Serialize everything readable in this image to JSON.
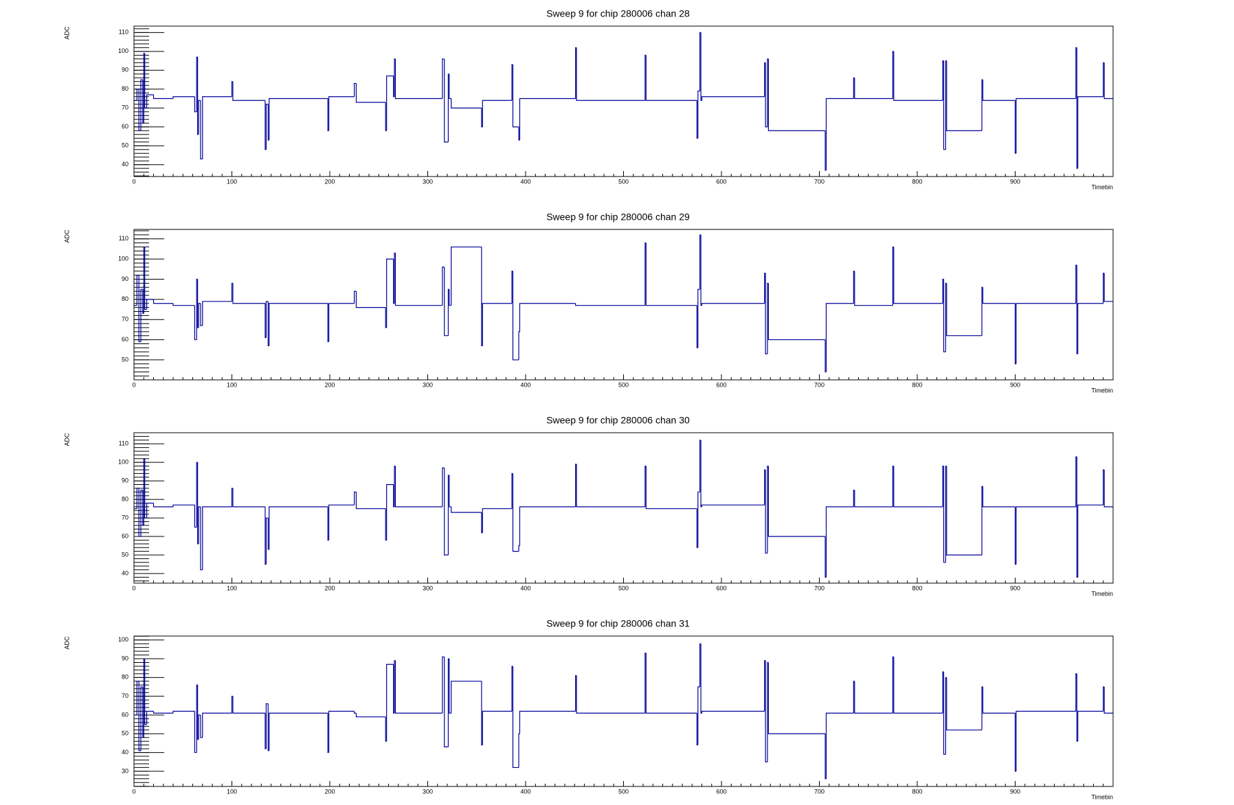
{
  "chart_data": [
    {
      "type": "step",
      "title": "Sweep 9 for chip 280006 chan 28",
      "x_label": "Timebin",
      "y_label": "ADC",
      "x": [
        0,
        3,
        5,
        7,
        9,
        10,
        11,
        13,
        20,
        40,
        62,
        64,
        65,
        66,
        68,
        70,
        100,
        101,
        134,
        135,
        137,
        138,
        198,
        199,
        225,
        227,
        257,
        258,
        265,
        266,
        267,
        315,
        317,
        321,
        322,
        324,
        355,
        356,
        386,
        387,
        393,
        394,
        451,
        452,
        522,
        523,
        575,
        576,
        578,
        579,
        580,
        644,
        645,
        647,
        648,
        706,
        707,
        735,
        736,
        775,
        776,
        826,
        827,
        829,
        830,
        866,
        867,
        900,
        901,
        962,
        963,
        964,
        990,
        991
      ],
      "series": [
        {
          "color": "#000099",
          "values": [
            74,
            80,
            58,
            85,
            62,
            99,
            70,
            77,
            75,
            76,
            68,
            97,
            56,
            74,
            43,
            76,
            84,
            74,
            48,
            72,
            53,
            75,
            58,
            76,
            83,
            73,
            58,
            87,
            76,
            96,
            75,
            96,
            52,
            88,
            75,
            70,
            60,
            74,
            93,
            60,
            53,
            75,
            102,
            74,
            98,
            74,
            54,
            79,
            110,
            74,
            76,
            94,
            60,
            96,
            58,
            37,
            75,
            86,
            75,
            100,
            74,
            95,
            48,
            95,
            58,
            85,
            74,
            46,
            75,
            102,
            38,
            76,
            94,
            75
          ]
        }
      ],
      "xlim": [
        0,
        1000
      ],
      "xticks": [
        0,
        100,
        200,
        300,
        400,
        500,
        600,
        700,
        800,
        900
      ],
      "ylim": [
        33.7,
        113.4
      ],
      "yticks": [
        40,
        50,
        60,
        70,
        80,
        90,
        100,
        110
      ]
    },
    {
      "type": "step",
      "title": "Sweep 9 for chip 280006 chan 29",
      "x_label": "Timebin",
      "y_label": "ADC",
      "x": [
        0,
        3,
        5,
        7,
        9,
        10,
        11,
        13,
        20,
        40,
        62,
        64,
        65,
        66,
        68,
        70,
        100,
        101,
        134,
        135,
        137,
        138,
        198,
        199,
        225,
        227,
        257,
        258,
        265,
        266,
        267,
        315,
        317,
        321,
        322,
        324,
        355,
        356,
        386,
        387,
        393,
        394,
        451,
        452,
        522,
        523,
        575,
        576,
        578,
        579,
        580,
        644,
        645,
        647,
        648,
        706,
        707,
        735,
        736,
        775,
        776,
        826,
        827,
        829,
        830,
        866,
        867,
        900,
        901,
        962,
        963,
        964,
        990,
        991
      ],
      "series": [
        {
          "color": "#000099",
          "values": [
            77,
            92,
            59,
            85,
            73,
            106,
            75,
            80,
            78,
            77,
            60,
            90,
            66,
            78,
            67,
            79,
            88,
            78,
            61,
            79,
            57,
            78,
            59,
            78,
            84,
            76,
            66,
            100,
            78,
            103,
            77,
            96,
            62,
            85,
            77,
            106,
            57,
            78,
            94,
            50,
            64,
            78,
            77,
            77,
            108,
            77,
            56,
            85,
            112,
            77,
            78,
            93,
            53,
            88,
            60,
            44,
            78,
            94,
            77,
            106,
            78,
            90,
            54,
            88,
            62,
            86,
            78,
            48,
            78,
            97,
            53,
            78,
            93,
            79
          ]
        }
      ],
      "xlim": [
        0,
        1000
      ],
      "xticks": [
        0,
        100,
        200,
        300,
        400,
        500,
        600,
        700,
        800,
        900
      ],
      "ylim": [
        40.1,
        114.7
      ],
      "yticks": [
        50,
        60,
        70,
        80,
        90,
        100,
        110
      ]
    },
    {
      "type": "step",
      "title": "Sweep 9 for chip 280006 chan 30",
      "x_label": "Timebin",
      "y_label": "ADC",
      "x": [
        0,
        3,
        5,
        7,
        9,
        10,
        11,
        13,
        20,
        40,
        62,
        64,
        65,
        66,
        68,
        70,
        100,
        101,
        134,
        135,
        137,
        138,
        198,
        199,
        225,
        227,
        257,
        258,
        265,
        266,
        267,
        315,
        317,
        321,
        322,
        324,
        355,
        356,
        386,
        387,
        393,
        394,
        451,
        452,
        522,
        523,
        575,
        576,
        578,
        579,
        580,
        644,
        645,
        647,
        648,
        706,
        707,
        735,
        736,
        775,
        776,
        826,
        827,
        829,
        830,
        866,
        867,
        900,
        901,
        962,
        963,
        964,
        990,
        991
      ],
      "series": [
        {
          "color": "#000099",
          "values": [
            75,
            86,
            60,
            85,
            66,
            102,
            70,
            78,
            76,
            77,
            65,
            100,
            56,
            76,
            42,
            76,
            86,
            76,
            45,
            70,
            53,
            76,
            58,
            77,
            84,
            75,
            58,
            88,
            76,
            98,
            76,
            97,
            50,
            93,
            76,
            73,
            62,
            75,
            94,
            52,
            55,
            76,
            99,
            76,
            98,
            75,
            54,
            84,
            112,
            76,
            77,
            96,
            51,
            98,
            60,
            38,
            76,
            85,
            76,
            98,
            76,
            98,
            46,
            98,
            50,
            87,
            76,
            45,
            76,
            103,
            38,
            77,
            96,
            76
          ]
        }
      ],
      "xlim": [
        0,
        1000
      ],
      "xticks": [
        0,
        100,
        200,
        300,
        400,
        500,
        600,
        700,
        800,
        900
      ],
      "ylim": [
        34.8,
        116
      ],
      "yticks": [
        40,
        50,
        60,
        70,
        80,
        90,
        100,
        110
      ]
    },
    {
      "type": "step",
      "title": "Sweep 9 for chip 280006 chan 31",
      "x_label": "Timebin",
      "y_label": "ADC",
      "x": [
        0,
        3,
        5,
        7,
        9,
        10,
        11,
        13,
        20,
        40,
        62,
        64,
        65,
        66,
        68,
        70,
        100,
        101,
        134,
        135,
        137,
        138,
        198,
        199,
        225,
        227,
        257,
        258,
        265,
        266,
        267,
        315,
        317,
        321,
        322,
        324,
        355,
        356,
        386,
        387,
        393,
        394,
        451,
        452,
        522,
        523,
        575,
        576,
        578,
        579,
        580,
        644,
        645,
        647,
        648,
        706,
        707,
        735,
        736,
        775,
        776,
        826,
        827,
        829,
        830,
        866,
        867,
        900,
        901,
        962,
        963,
        964,
        990,
        991
      ],
      "series": [
        {
          "color": "#000099",
          "values": [
            60,
            78,
            41,
            75,
            48,
            90,
            55,
            62,
            61,
            62,
            40,
            76,
            47,
            60,
            48,
            61,
            70,
            61,
            42,
            66,
            41,
            61,
            40,
            62,
            61,
            59,
            46,
            87,
            61,
            89,
            61,
            91,
            43,
            90,
            61,
            78,
            44,
            62,
            86,
            32,
            50,
            62,
            81,
            61,
            93,
            61,
            44,
            75,
            98,
            61,
            62,
            89,
            35,
            88,
            50,
            26,
            61,
            78,
            61,
            91,
            61,
            83,
            39,
            80,
            52,
            75,
            61,
            30,
            62,
            82,
            46,
            62,
            75,
            61
          ]
        }
      ],
      "xlim": [
        0,
        1000
      ],
      "xticks": [
        0,
        100,
        200,
        300,
        400,
        500,
        600,
        700,
        800,
        900
      ],
      "ylim": [
        21.9,
        102.1
      ],
      "yticks": [
        30,
        40,
        50,
        60,
        70,
        80,
        90,
        100
      ]
    }
  ]
}
